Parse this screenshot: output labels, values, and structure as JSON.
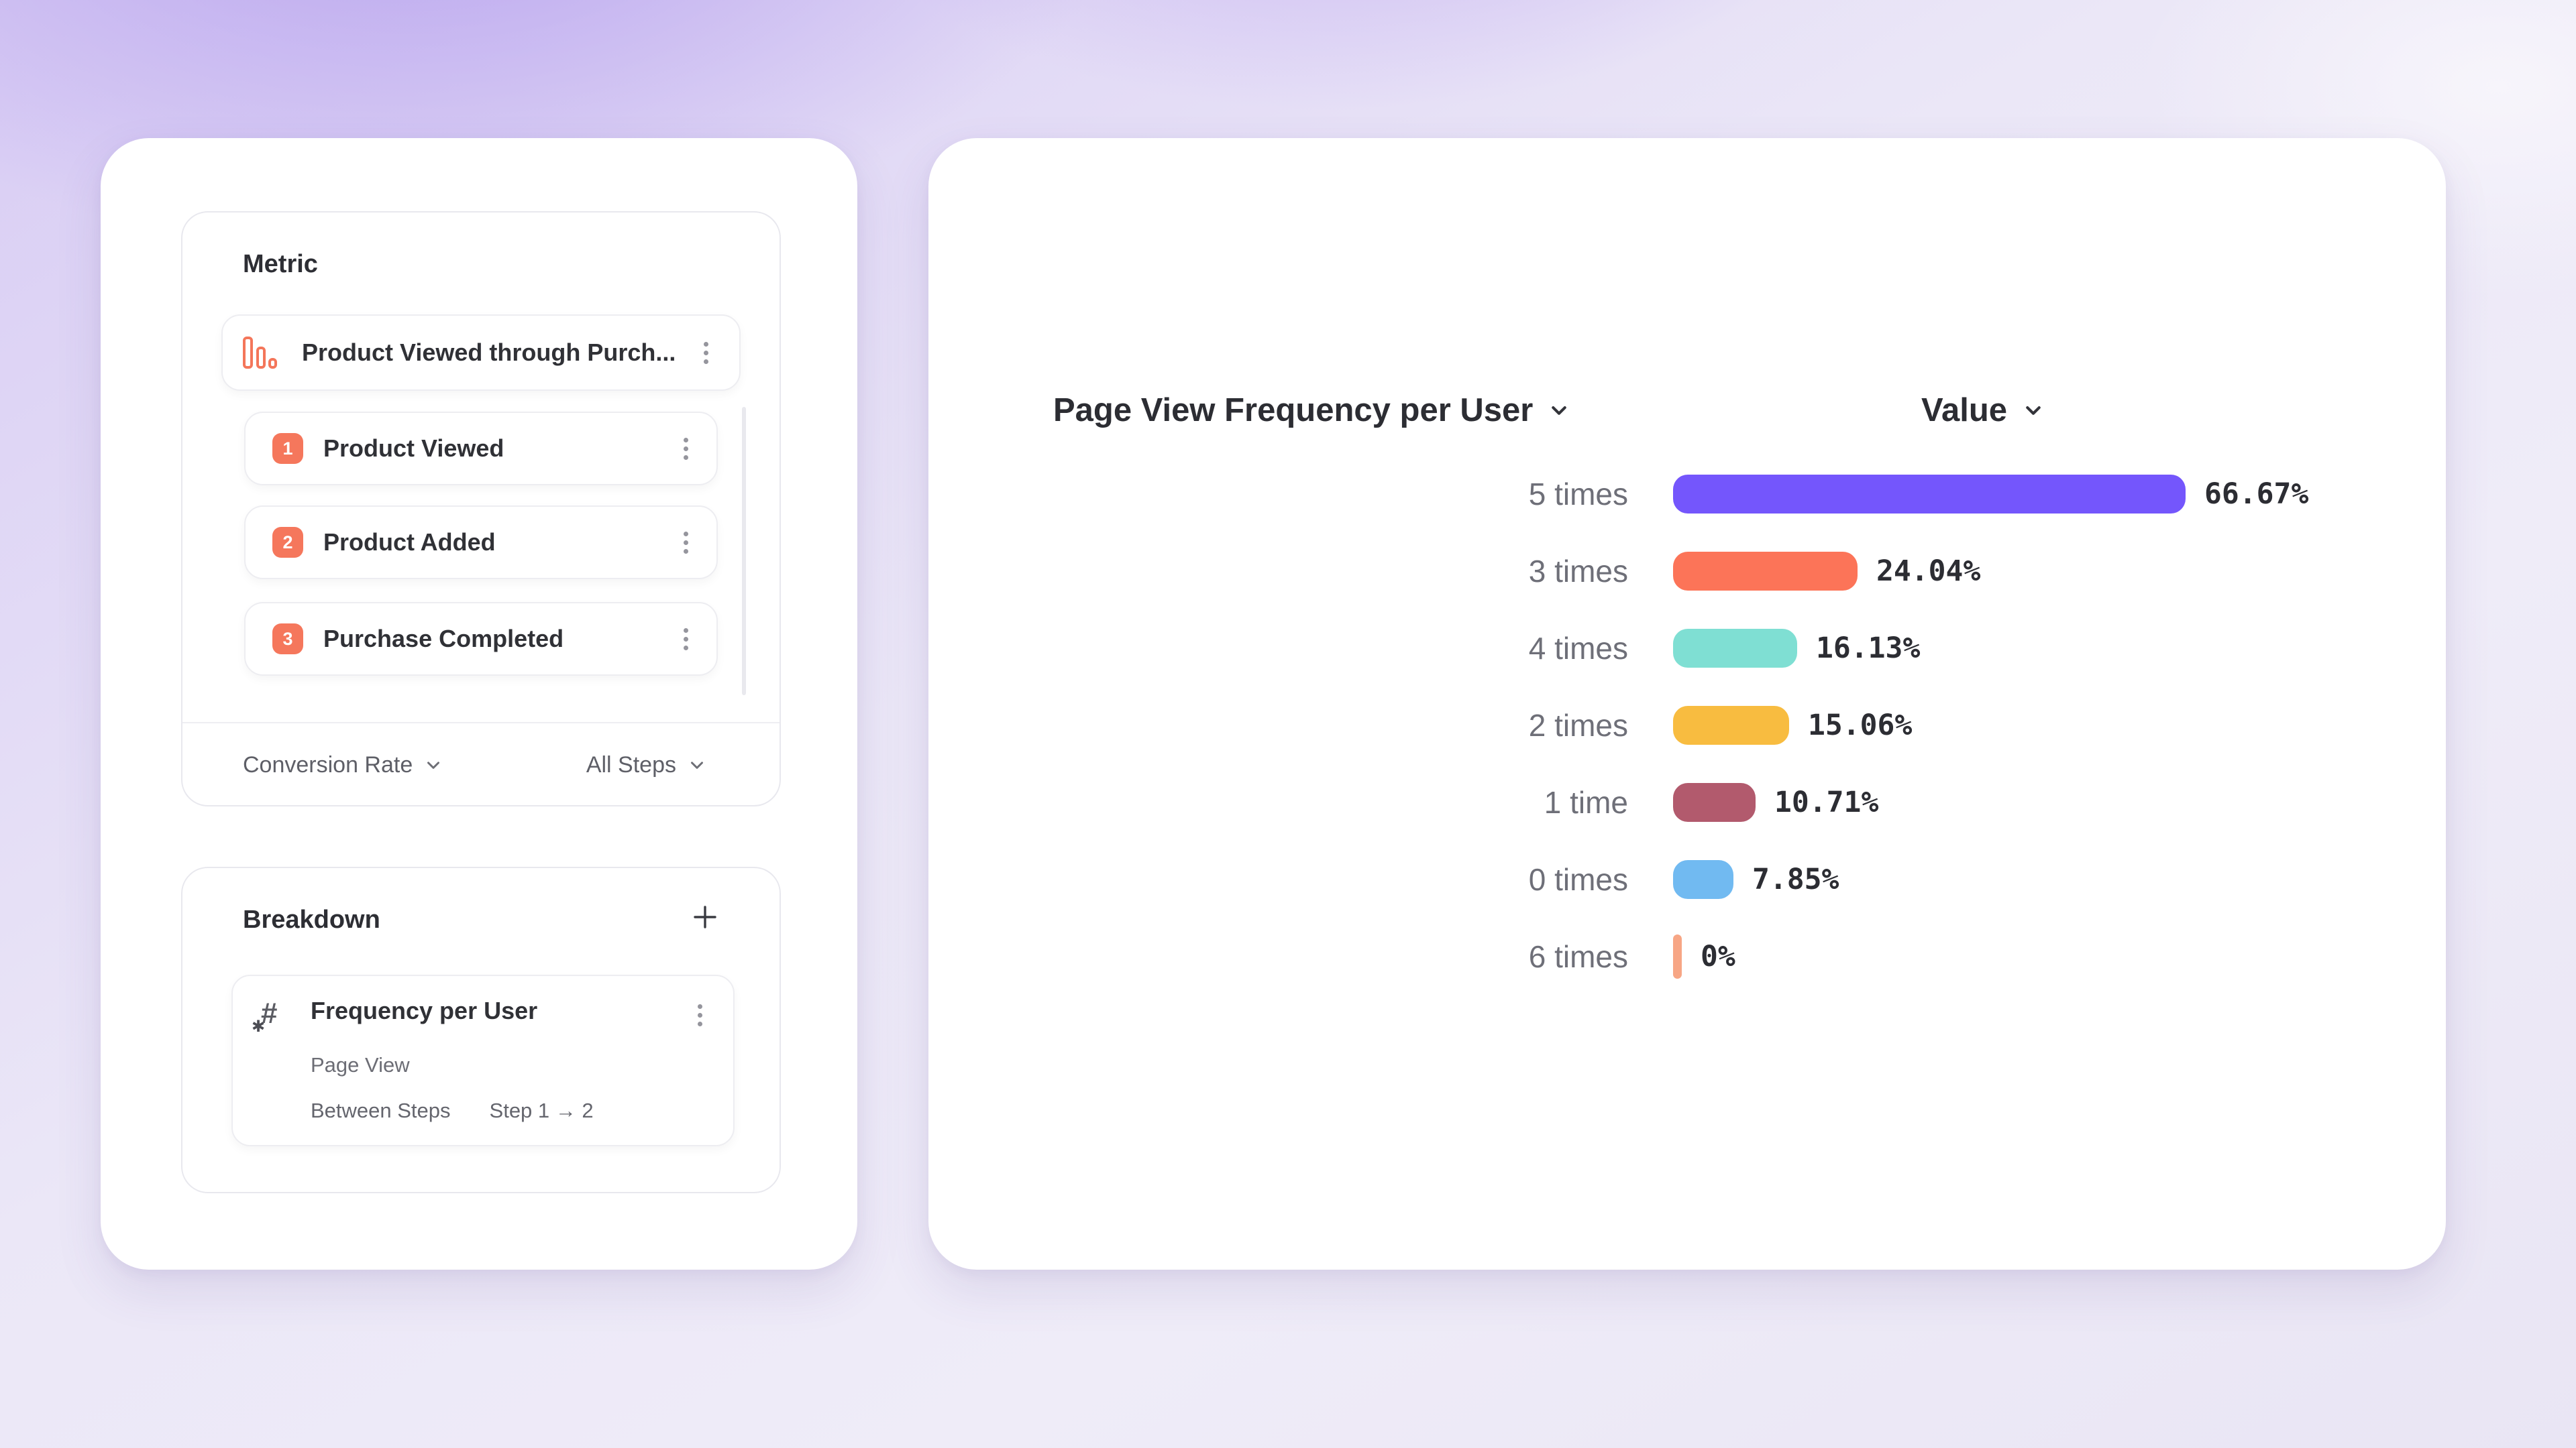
{
  "colors": {
    "accent_orange": "#F5775C",
    "icon_orange": "#F4765A",
    "zero_sliver": "#F7A685"
  },
  "metric_panel": {
    "title": "Metric",
    "funnel": {
      "name": "Product Viewed through Purch..."
    },
    "steps": [
      {
        "number": "1",
        "label": "Product Viewed"
      },
      {
        "number": "2",
        "label": "Product Added"
      },
      {
        "number": "3",
        "label": "Purchase Completed"
      }
    ],
    "measure": "Conversion Rate",
    "steps_filter": "All Steps"
  },
  "breakdown_panel": {
    "title": "Breakdown",
    "item": {
      "title": "Frequency per User",
      "event": "Page View",
      "scope_label": "Between Steps",
      "scope_value": "Step 1 → 2"
    }
  },
  "chart": {
    "column_header": "Page View Frequency per User",
    "value_header": "Value",
    "rows": [
      {
        "category": "5 times",
        "value": 66.67,
        "label": "66.67%",
        "color": "#7456FC"
      },
      {
        "category": "3 times",
        "value": 24.04,
        "label": "24.04%",
        "color": "#FC7458"
      },
      {
        "category": "4 times",
        "value": 16.13,
        "label": "16.13%",
        "color": "#7FDFD3"
      },
      {
        "category": "2 times",
        "value": 15.06,
        "label": "15.06%",
        "color": "#F8BC40"
      },
      {
        "category": "1 time",
        "value": 10.71,
        "label": "10.71%",
        "color": "#B25A6D"
      },
      {
        "category": "0 times",
        "value": 7.85,
        "label": "7.85%",
        "color": "#71BAF1"
      },
      {
        "category": "6 times",
        "value": 0,
        "label": "0%",
        "color": "#F7A685"
      }
    ],
    "chart_data": {
      "type": "bar",
      "orientation": "horizontal",
      "title": "Page View Frequency per User",
      "categories": [
        "5 times",
        "3 times",
        "4 times",
        "2 times",
        "1 time",
        "0 times",
        "6 times"
      ],
      "values": [
        66.67,
        24.04,
        16.13,
        15.06,
        10.71,
        7.85,
        0
      ],
      "value_labels": [
        "66.67%",
        "24.04%",
        "16.13%",
        "15.06%",
        "10.71%",
        "7.85%",
        "0%"
      ],
      "colors": [
        "#7456FC",
        "#FC7458",
        "#7FDFD3",
        "#F8BC40",
        "#B25A6D",
        "#71BAF1",
        "#F7A685"
      ],
      "xlabel": "Value",
      "ylabel": "",
      "xlim": [
        0,
        100
      ],
      "grid": false,
      "legend": false
    }
  }
}
